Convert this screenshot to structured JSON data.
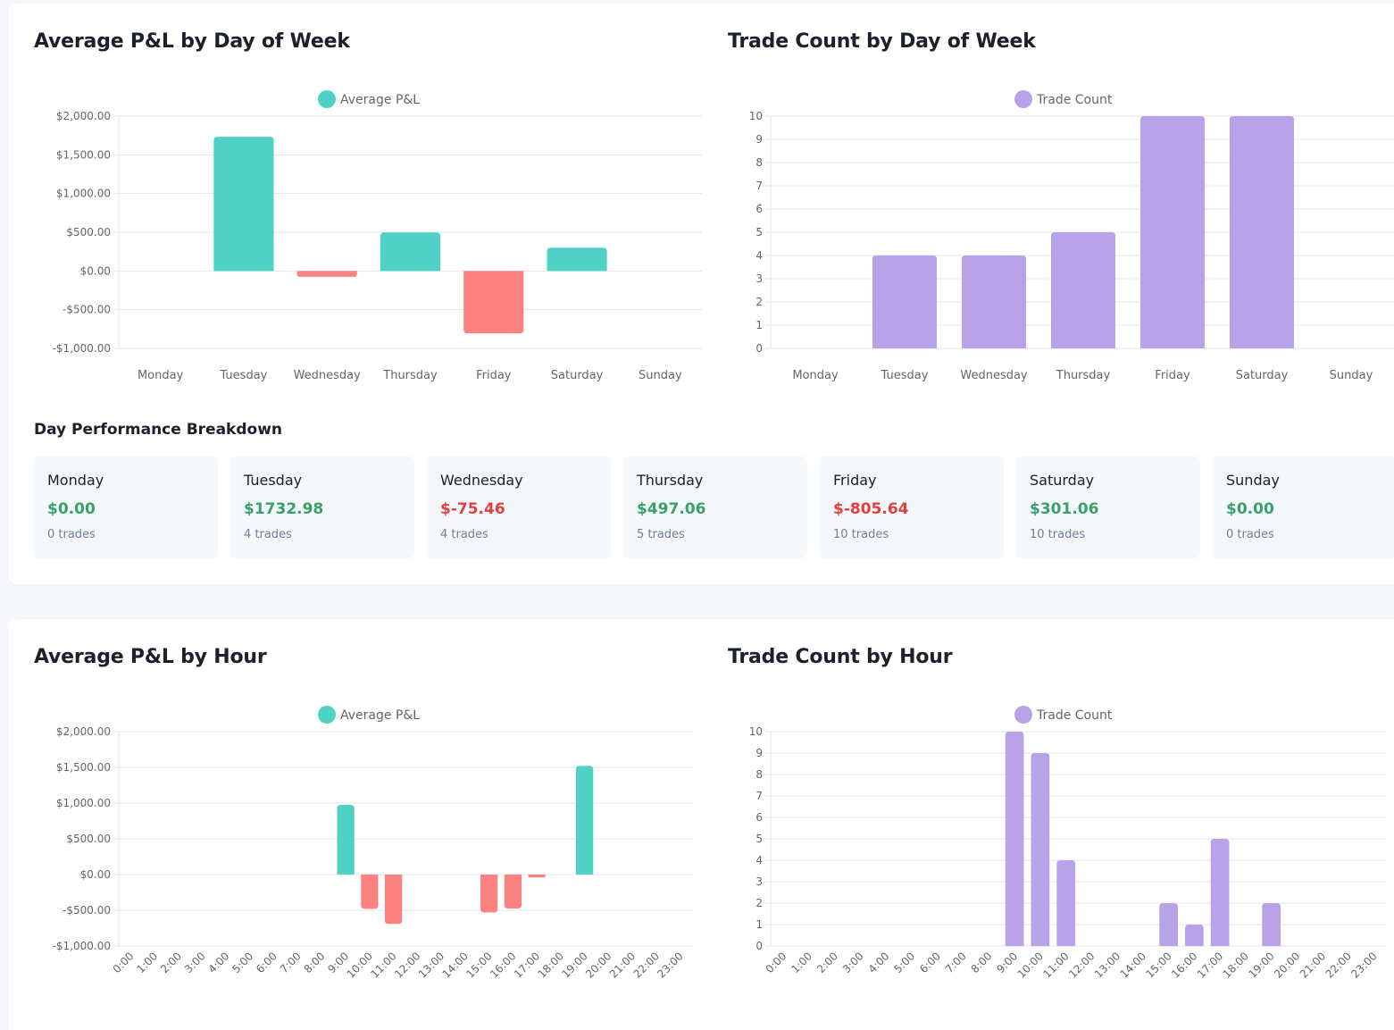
{
  "colors": {
    "positive_bar": "#4fd1c5",
    "negative_bar": "#fc8181",
    "count_bar": "#b8a2e8",
    "grid": "#e6e6e6",
    "positive_text": "#38a169",
    "negative_text": "#e53e3e"
  },
  "day_section": {
    "breakdown_title": "Day Performance Breakdown",
    "days": [
      {
        "name": "Monday",
        "pnl": "$0.00",
        "trades": "0 trades",
        "sign": "pos"
      },
      {
        "name": "Tuesday",
        "pnl": "$1732.98",
        "trades": "4 trades",
        "sign": "pos"
      },
      {
        "name": "Wednesday",
        "pnl": "$-75.46",
        "trades": "4 trades",
        "sign": "neg"
      },
      {
        "name": "Thursday",
        "pnl": "$497.06",
        "trades": "5 trades",
        "sign": "pos"
      },
      {
        "name": "Friday",
        "pnl": "$-805.64",
        "trades": "10 trades",
        "sign": "neg"
      },
      {
        "name": "Saturday",
        "pnl": "$301.06",
        "trades": "10 trades",
        "sign": "pos"
      },
      {
        "name": "Sunday",
        "pnl": "$0.00",
        "trades": "0 trades",
        "sign": "pos"
      }
    ]
  },
  "chart_data": [
    {
      "id": "pnl-day",
      "type": "bar",
      "title": "Average P&L by Day of Week",
      "legend": "Average P&L",
      "legend_position": "top-center",
      "grid": true,
      "categories": [
        "Monday",
        "Tuesday",
        "Wednesday",
        "Thursday",
        "Friday",
        "Saturday",
        "Sunday"
      ],
      "values": [
        0,
        1732.98,
        -75.46,
        497.06,
        -805.64,
        301.06,
        0
      ],
      "ylim": [
        -1000,
        2000
      ],
      "yticks": [
        -1000,
        -500,
        0,
        500,
        1000,
        1500,
        2000
      ],
      "ytick_labels": [
        "-$1,000.00",
        "-$500.00",
        "$0.00",
        "$500.00",
        "$1,000.00",
        "$1,500.00",
        "$2,000.00"
      ]
    },
    {
      "id": "count-day",
      "type": "bar",
      "title": "Trade Count by Day of Week",
      "legend": "Trade Count",
      "legend_position": "top-center",
      "grid": true,
      "categories": [
        "Monday",
        "Tuesday",
        "Wednesday",
        "Thursday",
        "Friday",
        "Saturday",
        "Sunday"
      ],
      "values": [
        0,
        4,
        4,
        5,
        10,
        10,
        0
      ],
      "ylim": [
        0,
        10
      ],
      "yticks": [
        0,
        1,
        2,
        3,
        4,
        5,
        6,
        7,
        8,
        9,
        10
      ],
      "ytick_labels": [
        "0",
        "1",
        "2",
        "3",
        "4",
        "5",
        "6",
        "7",
        "8",
        "9",
        "10"
      ]
    },
    {
      "id": "pnl-hour",
      "type": "bar",
      "title": "Average P&L by Hour",
      "legend": "Average P&L",
      "legend_position": "top-center",
      "grid": true,
      "categories": [
        "0:00",
        "1:00",
        "2:00",
        "3:00",
        "4:00",
        "5:00",
        "6:00",
        "7:00",
        "8:00",
        "9:00",
        "10:00",
        "11:00",
        "12:00",
        "13:00",
        "14:00",
        "15:00",
        "16:00",
        "17:00",
        "18:00",
        "19:00",
        "20:00",
        "21:00",
        "22:00",
        "23:00"
      ],
      "values": [
        0,
        0,
        0,
        0,
        0,
        0,
        0,
        0,
        0,
        975,
        -480,
        -690,
        0,
        0,
        0,
        -530,
        -475,
        -40,
        0,
        1520,
        0,
        0,
        0,
        0
      ],
      "ylim": [
        -1000,
        2000
      ],
      "yticks": [
        -1000,
        -500,
        0,
        500,
        1000,
        1500,
        2000
      ],
      "ytick_labels": [
        "-$1,000.00",
        "-$500.00",
        "$0.00",
        "$500.00",
        "$1,000.00",
        "$1,500.00",
        "$2,000.00"
      ]
    },
    {
      "id": "count-hour",
      "type": "bar",
      "title": "Trade Count by Hour",
      "legend": "Trade Count",
      "legend_position": "top-center",
      "grid": true,
      "categories": [
        "0:00",
        "1:00",
        "2:00",
        "3:00",
        "4:00",
        "5:00",
        "6:00",
        "7:00",
        "8:00",
        "9:00",
        "10:00",
        "11:00",
        "12:00",
        "13:00",
        "14:00",
        "15:00",
        "16:00",
        "17:00",
        "18:00",
        "19:00",
        "20:00",
        "21:00",
        "22:00",
        "23:00"
      ],
      "values": [
        0,
        0,
        0,
        0,
        0,
        0,
        0,
        0,
        0,
        10,
        9,
        4,
        0,
        0,
        0,
        2,
        1,
        5,
        0,
        2,
        0,
        0,
        0,
        0
      ],
      "ylim": [
        0,
        10
      ],
      "yticks": [
        0,
        1,
        2,
        3,
        4,
        5,
        6,
        7,
        8,
        9,
        10
      ],
      "ytick_labels": [
        "0",
        "1",
        "2",
        "3",
        "4",
        "5",
        "6",
        "7",
        "8",
        "9",
        "10"
      ]
    }
  ]
}
